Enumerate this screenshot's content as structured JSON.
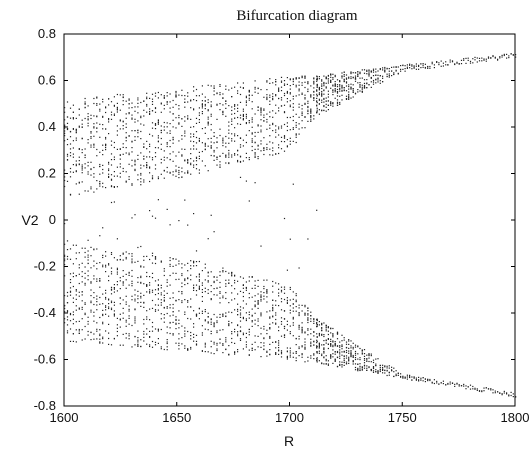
{
  "chart_data": {
    "type": "scatter",
    "title": "Bifurcation diagram",
    "xlabel": "R",
    "ylabel": "V2",
    "xlim": [
      1600,
      1800
    ],
    "ylim": [
      -0.8,
      0.8
    ],
    "grid": false,
    "legend": "none",
    "marker_color": "#222222",
    "x_ticks": [
      1600,
      1650,
      1700,
      1750,
      1800
    ],
    "x_tick_labels": [
      "1600",
      "1650",
      "1700",
      "1750",
      "1800"
    ],
    "y_ticks": [
      -0.8,
      -0.6,
      -0.4,
      -0.2,
      0,
      0.2,
      0.4,
      0.6,
      0.8
    ],
    "y_tick_labels": [
      "-0.8",
      "-0.6",
      "-0.4",
      "-0.2",
      "0",
      "0.2",
      "0.4",
      "0.6",
      "0.8"
    ],
    "bands": {
      "chaotic_r_range": [
        1600,
        1712
      ],
      "periodic_r_range": [
        1712,
        1800
      ],
      "upper_outer_edge": [
        [
          1600,
          0.52
        ],
        [
          1650,
          0.57
        ],
        [
          1700,
          0.62
        ],
        [
          1712,
          0.625
        ],
        [
          1750,
          0.67
        ],
        [
          1800,
          0.72
        ]
      ],
      "upper_inner_edge": [
        [
          1600,
          0.1
        ],
        [
          1650,
          0.18
        ],
        [
          1700,
          0.3
        ],
        [
          1712,
          0.45
        ],
        [
          1750,
          0.64
        ],
        [
          1800,
          0.7
        ]
      ],
      "lower_outer_edge": [
        [
          1600,
          -0.52
        ],
        [
          1650,
          -0.56
        ],
        [
          1700,
          -0.6
        ],
        [
          1712,
          -0.615
        ],
        [
          1750,
          -0.68
        ],
        [
          1800,
          -0.76
        ]
      ],
      "lower_inner_edge": [
        [
          1600,
          -0.1
        ],
        [
          1650,
          -0.15
        ],
        [
          1700,
          -0.28
        ],
        [
          1712,
          -0.42
        ],
        [
          1750,
          -0.66
        ],
        [
          1800,
          -0.74
        ]
      ]
    }
  }
}
